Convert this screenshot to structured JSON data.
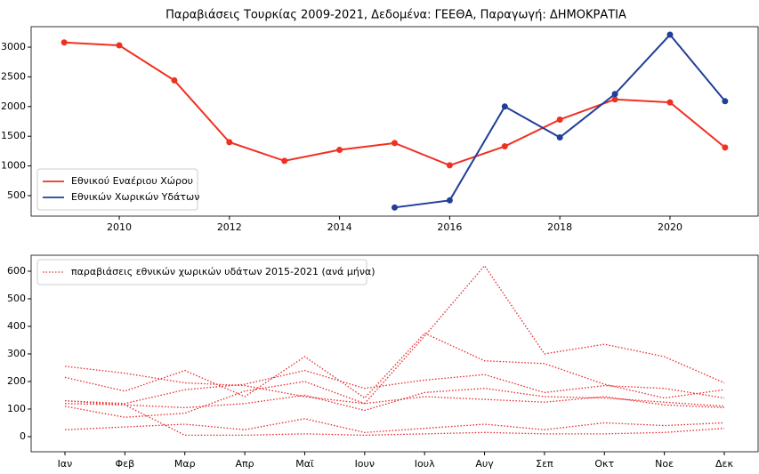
{
  "chart_data": [
    {
      "type": "line",
      "title": "Παραβιάσεις Τουρκίας 2009-2021, Δεδομένα: ΓΕΕΘΑ, Παραγωγή: ΔΗΜΟΚΡΑΤΙΑ",
      "x": [
        2009,
        2010,
        2011,
        2012,
        2013,
        2014,
        2015,
        2016,
        2017,
        2018,
        2019,
        2020,
        2021
      ],
      "series": [
        {
          "name": "Εθνικού Εναέριου Χώρου",
          "color": "#f03020",
          "values": [
            3080,
            3030,
            2440,
            1400,
            1085,
            1270,
            1385,
            1010,
            1330,
            1780,
            2120,
            2070,
            1310
          ]
        },
        {
          "name": "Εθνικών Χωρικών Υδάτων",
          "color": "#1f3f99",
          "values": [
            null,
            null,
            null,
            null,
            null,
            null,
            300,
            420,
            2000,
            1480,
            2210,
            3210,
            2090
          ]
        }
      ],
      "xlim": [
        2008.4,
        2021.6
      ],
      "xticks": [
        2010,
        2012,
        2014,
        2016,
        2018,
        2020
      ],
      "ylim": [
        155,
        3345
      ],
      "yticks": [
        500,
        1000,
        1500,
        2000,
        2500,
        3000
      ],
      "legend": "lower left",
      "markers": true
    },
    {
      "type": "line",
      "categories": [
        "Ιαν",
        "Φεβ",
        "Μαρ",
        "Απρ",
        "Μαϊ",
        "Ιουν",
        "Ιουλ",
        "Αυγ",
        "Σεπ",
        "Οκτ",
        "Νοε",
        "Δεκ"
      ],
      "series": [
        {
          "name": "παραβιάσεις εθνικών χωρικών υδάτων 2015-2021 (ανά μήνα)",
          "color": "#e8262a",
          "values": [
            255,
            230,
            195,
            185,
            145,
            120,
            365,
            620,
            300,
            335,
            290,
            195
          ]
        },
        {
          "color": "#e8262a",
          "values": [
            215,
            165,
            240,
            145,
            290,
            140,
            375,
            275,
            265,
            190,
            140,
            170
          ]
        },
        {
          "color": "#e8262a",
          "values": [
            130,
            120,
            170,
            190,
            240,
            175,
            205,
            225,
            160,
            185,
            175,
            140
          ]
        },
        {
          "color": "#e8262a",
          "values": [
            120,
            115,
            105,
            120,
            150,
            95,
            160,
            175,
            145,
            140,
            125,
            110
          ]
        },
        {
          "color": "#e8262a",
          "values": [
            110,
            70,
            85,
            165,
            200,
            120,
            145,
            135,
            125,
            145,
            115,
            105
          ]
        },
        {
          "color": "#e8262a",
          "values": [
            25,
            35,
            45,
            25,
            65,
            15,
            30,
            45,
            25,
            50,
            40,
            50
          ]
        },
        {
          "color": "#e8262a",
          "values": [
            130,
            115,
            5,
            5,
            10,
            5,
            10,
            15,
            10,
            10,
            15,
            30
          ]
        }
      ],
      "ylim": [
        -55,
        658
      ],
      "yticks": [
        0,
        100,
        200,
        300,
        400,
        500,
        600
      ],
      "legend": "upper left",
      "dotted": true
    }
  ]
}
